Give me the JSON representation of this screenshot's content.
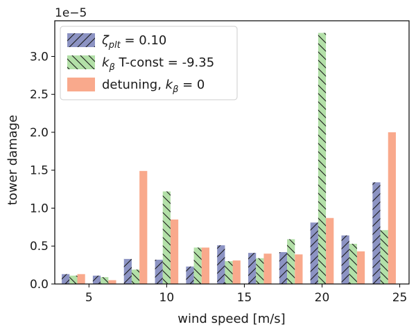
{
  "chart_data": {
    "type": "bar",
    "title": "",
    "xlabel": "wind speed [m/s]",
    "ylabel": "tower damage",
    "y_offset_label": "1e−5",
    "y_scale": 1e-05,
    "x": [
      4,
      6,
      8,
      10,
      12,
      14,
      16,
      18,
      20,
      22,
      24
    ],
    "xlim": [
      2.8,
      25.6
    ],
    "ylim": [
      0,
      3.47
    ],
    "xticks": [
      5,
      10,
      15,
      20,
      25
    ],
    "xtick_labels": [
      "5",
      "10",
      "15",
      "20",
      "25"
    ],
    "yticks": [
      0,
      0.5,
      1.0,
      1.5,
      2.0,
      2.5,
      3.0
    ],
    "ytick_labels": [
      "0.0",
      "0.5",
      "1.0",
      "1.5",
      "2.0",
      "2.5",
      "3.0"
    ],
    "legend_position": "top-left",
    "series": [
      {
        "name": "zeta-plt",
        "label_main": "ζ",
        "label_sub": "plt",
        "label_rest": " = 0.10",
        "color": "#8c93c3",
        "hatch": "/",
        "values": [
          0.13,
          0.11,
          0.33,
          0.32,
          0.23,
          0.51,
          0.41,
          0.42,
          0.81,
          0.64,
          1.34
        ]
      },
      {
        "name": "k-beta-tconst",
        "label_main": "k",
        "label_sub": "β",
        "label_rest": " T-const = -9.35",
        "color": "#b3e0a8",
        "hatch": "\\",
        "values": [
          0.11,
          0.09,
          0.19,
          1.22,
          0.48,
          0.3,
          0.34,
          0.59,
          3.31,
          0.53,
          0.71
        ]
      },
      {
        "name": "detuning",
        "label_main": "detuning, k",
        "label_sub": "β",
        "label_rest": " = 0",
        "color": "#f9a98c",
        "hatch": "",
        "values": [
          0.13,
          0.05,
          1.49,
          0.85,
          0.48,
          0.31,
          0.4,
          0.39,
          0.87,
          0.43,
          2.0
        ]
      }
    ]
  }
}
